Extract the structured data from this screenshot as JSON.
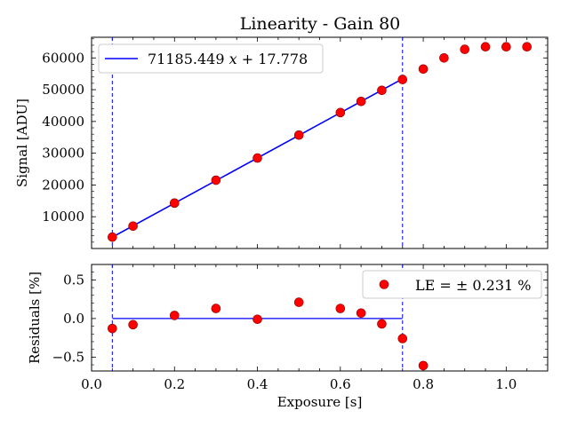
{
  "chart_data": [
    {
      "panel": "top",
      "type": "scatter",
      "title": "Linearity - Gain 80",
      "xlabel": "",
      "ylabel": "Signal [ADU]",
      "xlim": [
        0.0,
        1.1
      ],
      "ylim": [
        0,
        66500
      ],
      "yticks": [
        10000,
        20000,
        30000,
        40000,
        50000,
        60000
      ],
      "ytick_labels": [
        "10000",
        "20000",
        "30000",
        "40000",
        "50000",
        "60000"
      ],
      "x_tick_labels_shown": false,
      "grid": false,
      "legend_position": "upper-left",
      "series": [
        {
          "style": "markers",
          "color": "#ff0000",
          "edge_color": "#8b0000",
          "points": [
            {
              "x": 0.05,
              "y": 3580
            },
            {
              "x": 0.1,
              "y": 7050
            },
            {
              "x": 0.2,
              "y": 14300
            },
            {
              "x": 0.3,
              "y": 21500
            },
            {
              "x": 0.4,
              "y": 28480
            },
            {
              "x": 0.5,
              "y": 35700
            },
            {
              "x": 0.6,
              "y": 42800
            },
            {
              "x": 0.65,
              "y": 46300
            },
            {
              "x": 0.7,
              "y": 49800
            },
            {
              "x": 0.75,
              "y": 53200
            },
            {
              "x": 0.8,
              "y": 56500
            },
            {
              "x": 0.85,
              "y": 60000
            },
            {
              "x": 0.9,
              "y": 62700
            },
            {
              "x": 0.95,
              "y": 63500
            },
            {
              "x": 1.0,
              "y": 63500
            },
            {
              "x": 1.05,
              "y": 63500
            }
          ]
        },
        {
          "name": "71185.449 x + 17.778",
          "style": "line",
          "color": "#0000ff",
          "slope": 71185.449,
          "intercept": 17.778,
          "x_range": [
            0.05,
            0.75
          ]
        }
      ],
      "vlines": [
        0.05,
        0.75
      ],
      "vline_color": "#0000ff",
      "legend": {
        "prefix": "71185.449 ",
        "var": "x",
        "suffix": " + 17.778"
      }
    },
    {
      "panel": "bottom",
      "type": "scatter",
      "xlabel": "Exposure [s]",
      "ylabel": "Residuals [%]",
      "xlim": [
        0.0,
        1.1
      ],
      "ylim": [
        -0.68,
        0.7
      ],
      "xticks": [
        0.0,
        0.2,
        0.4,
        0.6,
        0.8,
        1.0
      ],
      "xtick_labels": [
        "0.0",
        "0.2",
        "0.4",
        "0.6",
        "0.8",
        "1.0"
      ],
      "yticks": [
        -0.5,
        0.0,
        0.5
      ],
      "ytick_labels": [
        "−0.5",
        "0.0",
        "0.5"
      ],
      "grid": false,
      "legend_position": "upper-right",
      "series": [
        {
          "name": "LE = ± 0.231 %",
          "style": "markers",
          "color": "#ff0000",
          "edge_color": "#8b0000",
          "points": [
            {
              "x": 0.05,
              "y": -0.13
            },
            {
              "x": 0.1,
              "y": -0.08
            },
            {
              "x": 0.2,
              "y": 0.04
            },
            {
              "x": 0.3,
              "y": 0.13
            },
            {
              "x": 0.4,
              "y": -0.01
            },
            {
              "x": 0.5,
              "y": 0.21
            },
            {
              "x": 0.6,
              "y": 0.13
            },
            {
              "x": 0.65,
              "y": 0.07
            },
            {
              "x": 0.7,
              "y": -0.07
            },
            {
              "x": 0.75,
              "y": -0.26
            },
            {
              "x": 0.8,
              "y": -0.61
            }
          ]
        },
        {
          "style": "line",
          "color": "#0000ff",
          "y": 0.0,
          "x_range": [
            0.05,
            0.75
          ]
        }
      ],
      "vlines": [
        0.05,
        0.75
      ],
      "vline_color": "#0000ff",
      "legend": {
        "text": "LE = ± 0.231 %"
      }
    }
  ]
}
